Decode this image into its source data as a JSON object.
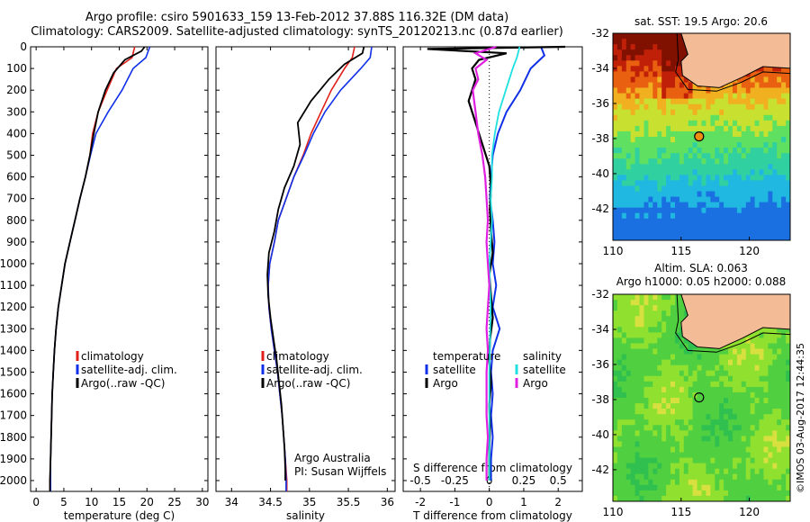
{
  "header": {
    "title_line1": "Argo profile: csiro 5901633_159 13-Feb-2012 37.88S 116.32E (DM data)",
    "title_line2": "Climatology: CARS2009. Satellite-adjusted climatology: synTS_20120213.nc (0.87d earlier)"
  },
  "colors": {
    "climatology": "#e0201a",
    "satellite": "#1030e8",
    "argo": "#000000",
    "sal_satellite": "#20e0e0",
    "sal_argo": "#e020e0",
    "land": "#f4bc96",
    "argo_marker": "#f08c10"
  },
  "depth_axis": {
    "ticks": [
      "0",
      "100",
      "200",
      "300",
      "400",
      "500",
      "600",
      "700",
      "800",
      "900",
      "1000",
      "1100",
      "1200",
      "1300",
      "1400",
      "1500",
      "1600",
      "1700",
      "1800",
      "1900",
      "2000"
    ],
    "range": [
      0,
      2050
    ]
  },
  "chart_data": [
    {
      "type": "line",
      "panel": "temperature",
      "xlabel": "temperature (deg C)",
      "xlim": [
        -1,
        31
      ],
      "xticks": [
        "0",
        "5",
        "10",
        "15",
        "20",
        "25",
        "30"
      ],
      "ylim_depth": [
        0,
        2050
      ],
      "legend": {
        "position": "lower-left",
        "items": [
          "climatology",
          "satellite-adj. clim.",
          "Argo(..raw -QC)"
        ]
      },
      "series": [
        {
          "name": "climatology",
          "points": [
            [
              17.8,
              0
            ],
            [
              17.3,
              50
            ],
            [
              14.5,
              100
            ],
            [
              12.8,
              200
            ],
            [
              11.2,
              300
            ],
            [
              10.2,
              400
            ],
            [
              9.7,
              500
            ],
            [
              8.9,
              600
            ],
            [
              7.9,
              700
            ],
            [
              7.0,
              800
            ],
            [
              6.1,
              900
            ],
            [
              5.2,
              1000
            ],
            [
              4.6,
              1100
            ],
            [
              4.0,
              1200
            ],
            [
              3.6,
              1300
            ],
            [
              3.3,
              1400
            ],
            [
              3.1,
              1500
            ],
            [
              2.9,
              1600
            ],
            [
              2.8,
              1700
            ],
            [
              2.7,
              1800
            ],
            [
              2.6,
              1900
            ],
            [
              2.5,
              2000
            ],
            [
              2.5,
              2050
            ]
          ]
        },
        {
          "name": "satellite-adj. clim.",
          "points": [
            [
              20.5,
              0
            ],
            [
              19.8,
              50
            ],
            [
              17.5,
              100
            ],
            [
              15.5,
              200
            ],
            [
              13.0,
              300
            ],
            [
              10.8,
              400
            ],
            [
              9.8,
              500
            ],
            [
              8.9,
              600
            ],
            [
              7.9,
              700
            ],
            [
              7.0,
              800
            ],
            [
              6.1,
              900
            ],
            [
              5.2,
              1000
            ],
            [
              4.6,
              1100
            ],
            [
              4.0,
              1200
            ],
            [
              3.6,
              1300
            ],
            [
              3.3,
              1400
            ],
            [
              3.1,
              1500
            ],
            [
              2.9,
              1600
            ],
            [
              2.8,
              1700
            ],
            [
              2.7,
              1800
            ],
            [
              2.6,
              1900
            ],
            [
              2.6,
              2000
            ],
            [
              2.6,
              2050
            ]
          ]
        },
        {
          "name": "Argo(..raw -QC)",
          "points": [
            [
              19.6,
              0
            ],
            [
              19.0,
              20
            ],
            [
              16.0,
              60
            ],
            [
              14.0,
              120
            ],
            [
              12.5,
              200
            ],
            [
              11.2,
              300
            ],
            [
              10.4,
              400
            ],
            [
              9.7,
              500
            ],
            [
              8.9,
              600
            ],
            [
              7.9,
              700
            ],
            [
              7.0,
              800
            ],
            [
              6.1,
              900
            ],
            [
              5.2,
              1000
            ],
            [
              4.6,
              1100
            ],
            [
              4.0,
              1200
            ],
            [
              3.6,
              1300
            ],
            [
              3.3,
              1400
            ],
            [
              3.1,
              1500
            ],
            [
              2.9,
              1600
            ],
            [
              2.8,
              1700
            ],
            [
              2.7,
              1800
            ],
            [
              2.6,
              1900
            ],
            [
              2.5,
              2000
            ],
            [
              2.5,
              2050
            ]
          ]
        }
      ]
    },
    {
      "type": "line",
      "panel": "salinity",
      "xlabel": "salinity",
      "xlim": [
        33.8,
        36.1
      ],
      "xticks": [
        "34",
        "34.5",
        "35",
        "35.5",
        "36"
      ],
      "ylim_depth": [
        0,
        2050
      ],
      "legend": {
        "position": "lower-left",
        "items": [
          "climatology",
          "satellite-adj. clim.",
          "Argo(..raw -QC)"
        ]
      },
      "annotation": [
        "Argo Australia",
        "PI: Susan Wijffels"
      ],
      "series": [
        {
          "name": "climatology",
          "points": [
            [
              35.58,
              0
            ],
            [
              35.55,
              50
            ],
            [
              35.45,
              100
            ],
            [
              35.28,
              200
            ],
            [
              35.15,
              300
            ],
            [
              35.02,
              400
            ],
            [
              34.92,
              500
            ],
            [
              34.8,
              600
            ],
            [
              34.7,
              700
            ],
            [
              34.6,
              800
            ],
            [
              34.55,
              900
            ],
            [
              34.49,
              1000
            ],
            [
              34.47,
              1100
            ],
            [
              34.48,
              1200
            ],
            [
              34.51,
              1300
            ],
            [
              34.55,
              1400
            ],
            [
              34.59,
              1500
            ],
            [
              34.62,
              1600
            ],
            [
              34.65,
              1700
            ],
            [
              34.67,
              1800
            ],
            [
              34.69,
              1900
            ],
            [
              34.71,
              2000
            ],
            [
              34.71,
              2050
            ]
          ]
        },
        {
          "name": "satellite-adj. clim.",
          "points": [
            [
              35.8,
              0
            ],
            [
              35.78,
              50
            ],
            [
              35.66,
              100
            ],
            [
              35.4,
              200
            ],
            [
              35.2,
              300
            ],
            [
              35.05,
              400
            ],
            [
              34.93,
              500
            ],
            [
              34.8,
              600
            ],
            [
              34.7,
              700
            ],
            [
              34.6,
              800
            ],
            [
              34.55,
              900
            ],
            [
              34.49,
              1000
            ],
            [
              34.47,
              1100
            ],
            [
              34.48,
              1200
            ],
            [
              34.51,
              1300
            ],
            [
              34.55,
              1400
            ],
            [
              34.59,
              1500
            ],
            [
              34.62,
              1600
            ],
            [
              34.65,
              1700
            ],
            [
              34.67,
              1800
            ],
            [
              34.69,
              1900
            ],
            [
              34.7,
              2000
            ],
            [
              34.7,
              2050
            ]
          ]
        },
        {
          "name": "Argo(..raw -QC)",
          "points": [
            [
              35.7,
              0
            ],
            [
              35.68,
              30
            ],
            [
              35.45,
              80
            ],
            [
              35.25,
              150
            ],
            [
              35.02,
              250
            ],
            [
              34.85,
              350
            ],
            [
              34.88,
              450
            ],
            [
              34.8,
              550
            ],
            [
              34.68,
              650
            ],
            [
              34.6,
              750
            ],
            [
              34.55,
              850
            ],
            [
              34.48,
              950
            ],
            [
              34.46,
              1050
            ],
            [
              34.47,
              1150
            ],
            [
              34.5,
              1250
            ],
            [
              34.54,
              1350
            ],
            [
              34.58,
              1450
            ],
            [
              34.61,
              1550
            ],
            [
              34.64,
              1650
            ],
            [
              34.66,
              1750
            ],
            [
              34.68,
              1850
            ],
            [
              34.69,
              1950
            ],
            [
              34.69,
              2000
            ]
          ]
        }
      ]
    },
    {
      "type": "line",
      "panel": "difference",
      "xlabel": "T difference from climatology",
      "xlabel_top": "S difference from climatology",
      "xlim_T": [
        -2.5,
        2.7
      ],
      "xticks_T": [
        "-2",
        "-1",
        "0",
        "1",
        "2"
      ],
      "xticks_S": [
        "-0.5",
        "-0.25",
        "0",
        "0.25",
        "0.5"
      ],
      "ylim_depth": [
        0,
        2050
      ],
      "legend": {
        "position": "lower",
        "groups": [
          {
            "title": "temperature",
            "items": [
              "satellite",
              "Argo"
            ]
          },
          {
            "title": "salinity",
            "items": [
              "satellite",
              "Argo"
            ]
          }
        ]
      },
      "series": [
        {
          "name": "temperature satellite",
          "points": [
            [
              1.5,
              0
            ],
            [
              1.6,
              40
            ],
            [
              1.2,
              100
            ],
            [
              0.9,
              200
            ],
            [
              0.5,
              300
            ],
            [
              0.25,
              400
            ],
            [
              0.1,
              500
            ],
            [
              0.05,
              600
            ],
            [
              0.02,
              700
            ],
            [
              0.1,
              800
            ],
            [
              0.15,
              900
            ],
            [
              0.1,
              1000
            ],
            [
              0.2,
              1100
            ],
            [
              0.1,
              1200
            ],
            [
              0.3,
              1300
            ],
            [
              0.1,
              1400
            ],
            [
              0.05,
              1500
            ],
            [
              0.1,
              1600
            ],
            [
              0.05,
              1700
            ],
            [
              0.1,
              1800
            ],
            [
              0.05,
              1900
            ],
            [
              0.05,
              2000
            ]
          ]
        },
        {
          "name": "temperature Argo",
          "points": [
            [
              2.2,
              0
            ],
            [
              -1.8,
              10
            ],
            [
              0.5,
              30
            ],
            [
              -0.3,
              60
            ],
            [
              -0.5,
              100
            ],
            [
              -0.4,
              150
            ],
            [
              -0.6,
              250
            ],
            [
              -0.4,
              350
            ],
            [
              -0.2,
              450
            ],
            [
              0.0,
              550
            ],
            [
              0.05,
              650
            ],
            [
              0.02,
              750
            ],
            [
              0.05,
              850
            ],
            [
              0.1,
              950
            ],
            [
              0.0,
              1050
            ],
            [
              0.05,
              1150
            ],
            [
              0.1,
              1250
            ],
            [
              0.02,
              1350
            ],
            [
              0.0,
              1450
            ],
            [
              0.05,
              1550
            ],
            [
              0.0,
              1650
            ],
            [
              0.02,
              1750
            ],
            [
              0.0,
              1850
            ],
            [
              0.0,
              1950
            ],
            [
              0.0,
              2000
            ]
          ]
        },
        {
          "name": "salinity satellite",
          "points": [
            [
              0.22,
              0
            ],
            [
              0.2,
              50
            ],
            [
              0.17,
              100
            ],
            [
              0.12,
              200
            ],
            [
              0.07,
              300
            ],
            [
              0.04,
              400
            ],
            [
              0.02,
              500
            ],
            [
              0.02,
              600
            ],
            [
              0.01,
              700
            ],
            [
              0.02,
              800
            ],
            [
              0.01,
              900
            ],
            [
              0.0,
              1000
            ],
            [
              0.01,
              1200
            ],
            [
              0.0,
              1500
            ],
            [
              0.0,
              2000
            ]
          ]
        },
        {
          "name": "salinity Argo",
          "points": [
            [
              0.05,
              0
            ],
            [
              -0.1,
              30
            ],
            [
              -0.02,
              60
            ],
            [
              -0.1,
              100
            ],
            [
              -0.08,
              150
            ],
            [
              -0.12,
              200
            ],
            [
              -0.1,
              300
            ],
            [
              -0.08,
              400
            ],
            [
              -0.05,
              500
            ],
            [
              -0.03,
              600
            ],
            [
              -0.02,
              700
            ],
            [
              -0.01,
              800
            ],
            [
              -0.02,
              900
            ],
            [
              -0.01,
              1000
            ],
            [
              0.0,
              1100
            ],
            [
              -0.01,
              1200
            ],
            [
              -0.02,
              1300
            ],
            [
              -0.01,
              1400
            ],
            [
              -0.02,
              1500
            ],
            [
              -0.02,
              1600
            ],
            [
              -0.02,
              1700
            ],
            [
              -0.01,
              1800
            ],
            [
              -0.02,
              1900
            ],
            [
              -0.02,
              2000
            ]
          ]
        }
      ]
    },
    {
      "type": "heatmap",
      "panel": "sst_map",
      "title": "sat. SST: 19.5 Argo: 20.6",
      "xlim": [
        110,
        123
      ],
      "ylim": [
        -43.8,
        -32
      ],
      "xticks": [
        "110",
        "115",
        "120"
      ],
      "yticks": [
        "-32",
        "-34",
        "-36",
        "-38",
        "-40",
        "-42"
      ],
      "argo_position": {
        "lon": 116.32,
        "lat": -37.88
      }
    },
    {
      "type": "heatmap",
      "panel": "sla_map",
      "title_line1": "Altim. SLA: 0.063",
      "title_line2": "Argo h1000: 0.05 h2000: 0.088",
      "xlim": [
        110,
        123
      ],
      "ylim": [
        -43.8,
        -32
      ],
      "xticks": [
        "110",
        "115",
        "120"
      ],
      "yticks": [
        "-32",
        "-34",
        "-36",
        "-38",
        "-40",
        "-42"
      ],
      "argo_position": {
        "lon": 116.32,
        "lat": -37.88
      }
    }
  ],
  "footer_stamp": "©IMOS 03-Aug-2017 12:44:35"
}
